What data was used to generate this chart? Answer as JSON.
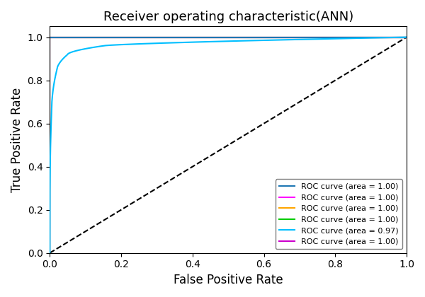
{
  "title": "Receiver operating characteristic(ANN)",
  "xlabel": "False Positive Rate",
  "ylabel": "True Positive Rate",
  "xlim": [
    0.0,
    1.0
  ],
  "ylim": [
    0.0,
    1.05
  ],
  "legend_entries": [
    {
      "label": "ROC curve (area = 1.00)",
      "color": "#1f77b4"
    },
    {
      "label": "ROC curve (area = 1.00)",
      "color": "#ff00ff"
    },
    {
      "label": "ROC curve (area = 1.00)",
      "color": "#ffa500"
    },
    {
      "label": "ROC curve (area = 1.00)",
      "color": "#00cc00"
    },
    {
      "label": "ROC curve (area = 0.97)",
      "color": "#00bfff"
    },
    {
      "label": "ROC curve (area = 1.00)",
      "color": "#cc00cc"
    }
  ],
  "diagonal_color": "black",
  "diagonal_linestyle": "--",
  "diagonal_linewidth": 1.5,
  "background_color": "#ffffff"
}
